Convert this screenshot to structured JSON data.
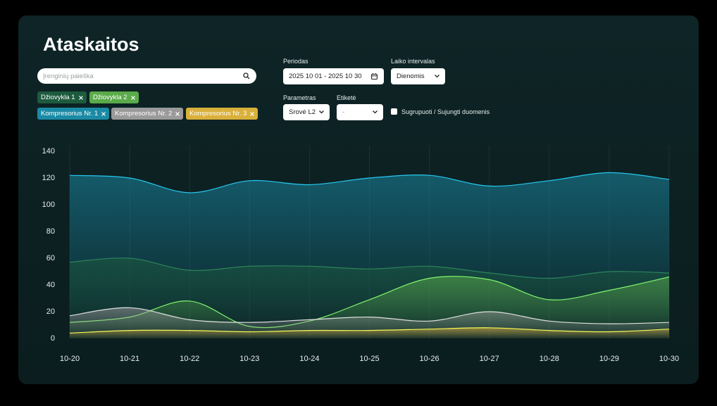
{
  "header": {
    "title": "Ataskaitos"
  },
  "search": {
    "placeholder": "Įrenginių paieška"
  },
  "filters": {
    "period": {
      "label": "Periodas",
      "value": "2025 10 01 - 2025 10 30"
    },
    "interval": {
      "label": "Laiko intervalas",
      "value": "Dienomis"
    },
    "parameter": {
      "label": "Parametras",
      "value": "Srovė L2"
    },
    "tag": {
      "label": "Etiketė",
      "value": "-"
    },
    "group": {
      "label": "Sugrupuoti / Sujungti duomenis"
    }
  },
  "chart_data": {
    "type": "area",
    "categories": [
      "10-20",
      "10-21",
      "10-22",
      "10-23",
      "10-24",
      "10-25",
      "10-26",
      "10-27",
      "10-28",
      "10-29",
      "10-30"
    ],
    "ylim": [
      0,
      140
    ],
    "yticks": [
      0,
      20,
      40,
      60,
      80,
      100,
      120,
      140
    ],
    "grid": true,
    "series": [
      {
        "name": "Džiovykla 1",
        "color": "#1d5b3e",
        "values": [
          57,
          60,
          51,
          54,
          54,
          52,
          54,
          49,
          45,
          50,
          49
        ]
      },
      {
        "name": "Džiovykla 2",
        "color": "#5aab4a",
        "values": [
          12,
          16,
          28,
          9,
          13,
          29,
          45,
          44,
          29,
          36,
          46
        ]
      },
      {
        "name": "Kompresorius Nr. 1",
        "color": "#1a8aa5",
        "values": [
          122,
          120,
          109,
          118,
          115,
          120,
          122,
          114,
          118,
          124,
          119
        ]
      },
      {
        "name": "Kompresorius Nr. 2",
        "color": "#9a9a9a",
        "values": [
          17,
          23,
          14,
          12,
          14,
          16,
          13,
          20,
          13,
          11,
          12
        ]
      },
      {
        "name": "Kompresorius Nr. 3",
        "color": "#d9b03a",
        "values": [
          4,
          6,
          6,
          5,
          6,
          6,
          7,
          8,
          6,
          5,
          7
        ]
      }
    ]
  }
}
